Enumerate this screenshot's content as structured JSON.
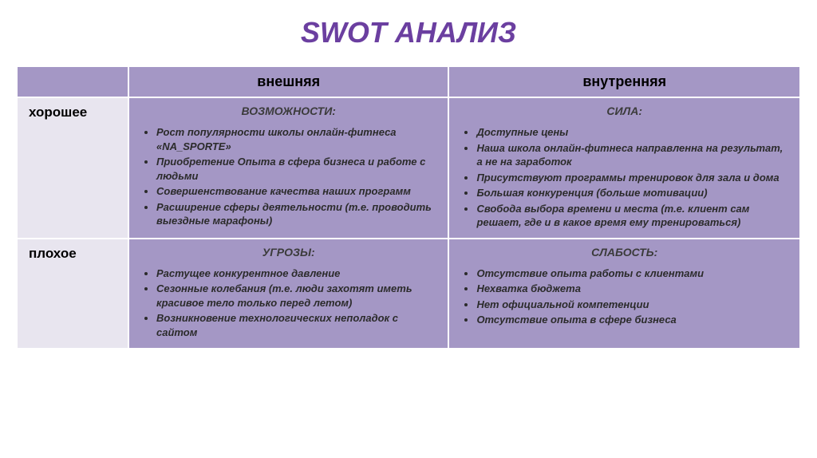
{
  "title": "SWOT АНАЛИЗ",
  "columns": {
    "external": "внешняя",
    "internal": "внутренняя"
  },
  "rows": {
    "good": "хорошее",
    "bad": "плохое"
  },
  "quadrants": {
    "opportunities": {
      "title": "ВОЗМОЖНОСТИ:",
      "items": [
        "Рост популярности школы онлайн-фитнеса «NA_SPORTE»",
        "Приобретение Опыта в сфера бизнеса и работе с людьми",
        "Совершенствование качества наших программ",
        "Расширение сферы деятельности (т.е. проводить выездные марафоны)"
      ]
    },
    "strengths": {
      "title": "СИЛА:",
      "items": [
        "Доступные цены",
        "Наша школа онлайн-фитнеса направленна на результат, а не на заработок",
        "Присутствуют программы тренировок для зала и дома",
        "Большая конкуренция (больше мотивации)",
        "Свобода выбора времени и места (т.е. клиент сам решает, где и в какое время ему тренироваться)"
      ]
    },
    "threats": {
      "title": "УГРОЗЫ:",
      "items": [
        "Растущее конкурентное давление",
        "Сезонные колебания (т.е. люди захотят иметь красивое тело только перед летом)",
        "Возникновение технологических неполадок с сайтом"
      ]
    },
    "weaknesses": {
      "title": "СЛАБОСТЬ:",
      "items": [
        "Отсутствие опыта работы с клиентами",
        "Нехватка бюджета",
        "Нет официальной компетенции",
        "Отсутствие опыта в сфере бизнеса"
      ]
    }
  },
  "colors": {
    "title": "#6b3fa0",
    "header_bg": "#a497c5",
    "rowlabel_bg": "#e8e5ef",
    "cell_bg": "#a497c5",
    "border": "#ffffff",
    "text": "#2b2b2b"
  }
}
